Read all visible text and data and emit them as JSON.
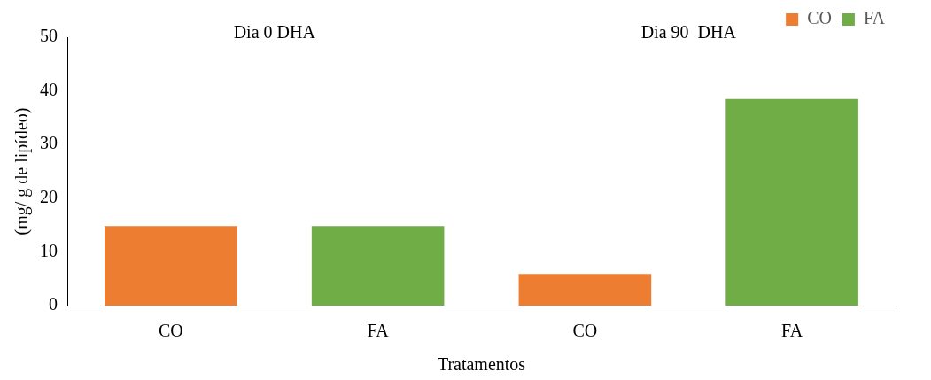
{
  "chart_data": {
    "type": "bar",
    "xlabel": "Tratamentos",
    "ylabel": "(mg/ g de lipídeo)",
    "categories": [
      "CO",
      "FA",
      "CO",
      "FA"
    ],
    "series": [
      {
        "name": "CO",
        "color": "#ed7d31",
        "values": [
          14.8,
          null,
          5.9,
          null
        ]
      },
      {
        "name": "FA",
        "color": "#70ad47",
        "values": [
          null,
          14.8,
          null,
          38.5
        ]
      }
    ],
    "ylim": [
      0,
      50
    ],
    "yticks": [
      0,
      10,
      20,
      30,
      40,
      50
    ],
    "grid": false,
    "legend": "top right",
    "annotations": [
      "Dia 0 DHA",
      "Dia 90  DHA"
    ]
  }
}
